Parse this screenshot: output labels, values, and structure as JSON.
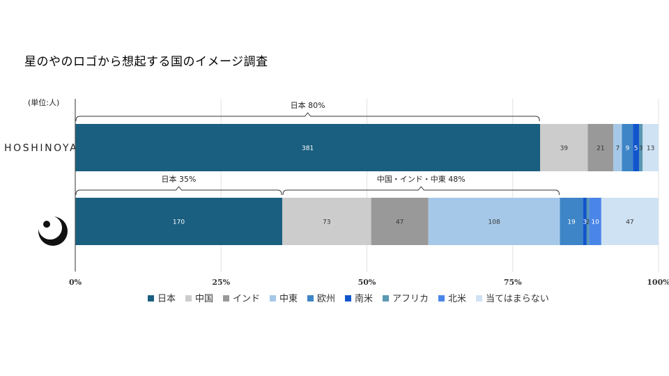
{
  "title": "星のやのロゴから想起する国のイメージ調査",
  "unit_label": "(単位:人)",
  "logo_text": "HOSHINOYA",
  "chart_data": {
    "type": "bar",
    "orientation": "horizontal",
    "stacked": "percent",
    "categories": [
      "HOSHINOYA",
      "circle-logo"
    ],
    "series": [
      {
        "name": "日本",
        "color": "#1a5f80",
        "values": [
          381,
          170
        ]
      },
      {
        "name": "中国",
        "color": "#cccccc",
        "values": [
          39,
          73
        ]
      },
      {
        "name": "インド",
        "color": "#999999",
        "values": [
          21,
          47
        ]
      },
      {
        "name": "中東",
        "color": "#a6c8e8",
        "values": [
          7,
          108
        ]
      },
      {
        "name": "欧州",
        "color": "#3d85c6",
        "values": [
          9,
          19
        ]
      },
      {
        "name": "南米",
        "color": "#1155cc",
        "values": [
          5,
          3
        ]
      },
      {
        "name": "アフリカ",
        "color": "#5b98b3",
        "values": [
          3,
          2
        ]
      },
      {
        "name": "北米",
        "color": "#4a86e8",
        "values": [
          0,
          10
        ]
      },
      {
        "name": "当てはまらない",
        "color": "#cfe2f3",
        "values": [
          13,
          47
        ]
      }
    ],
    "value_labels": [
      [
        "381",
        "39",
        "21",
        "7",
        "9",
        "5",
        "3",
        "",
        "13"
      ],
      [
        "170",
        "73",
        "47",
        "108",
        "19",
        "3",
        "2",
        "10",
        "47"
      ]
    ],
    "x_ticks": [
      "0%",
      "25%",
      "50%",
      "75%",
      "100%"
    ],
    "xlim": [
      0,
      100
    ],
    "grid": true,
    "legend_position": "bottom",
    "annotations": [
      {
        "bar": 0,
        "from_series": 0,
        "to_series": 0,
        "text": "日本  80%"
      },
      {
        "bar": 1,
        "from_series": 0,
        "to_series": 0,
        "text": "日本  35%"
      },
      {
        "bar": 1,
        "from_series": 1,
        "to_series": 3,
        "text": "中国・インド・中東  48%"
      }
    ]
  }
}
